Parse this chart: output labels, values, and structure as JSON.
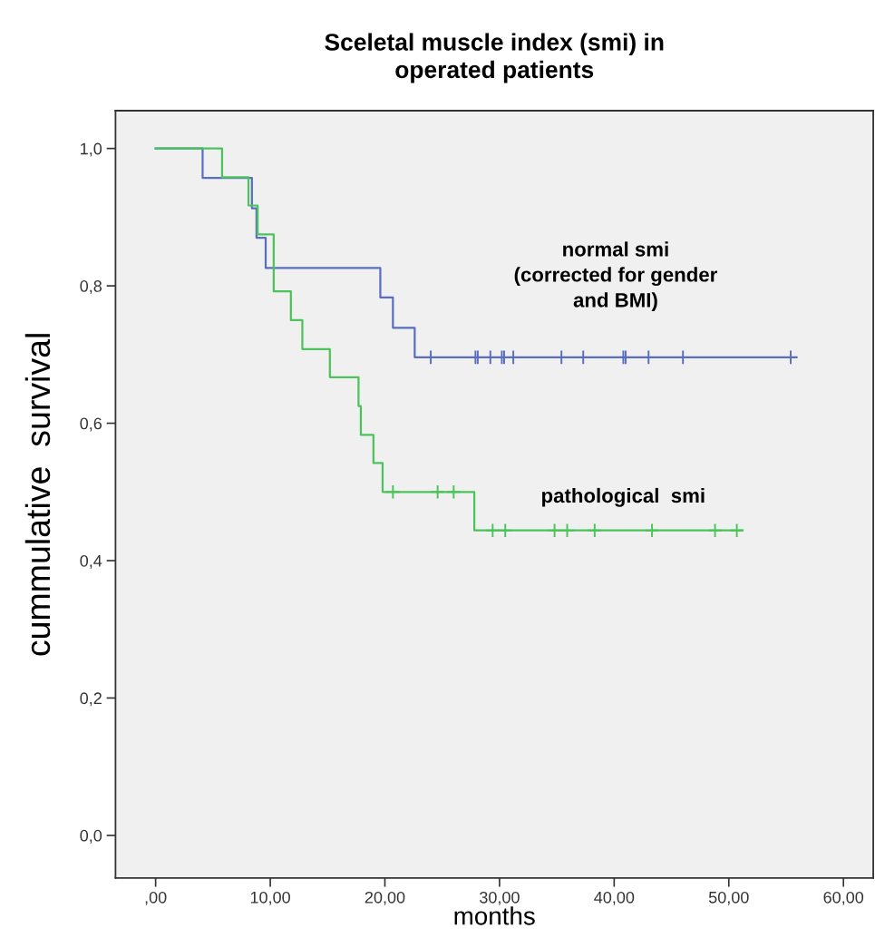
{
  "chart_data": {
    "type": "step",
    "title": "Sceletal muscle index (smi) in\noperated patients",
    "xlabel": "months",
    "ylabel": "cummulative  survival",
    "xlim": [
      -3.5,
      62.6
    ],
    "ylim": [
      -0.062,
      1.055
    ],
    "xticks": [
      {
        "value": 0,
        "label": ",00"
      },
      {
        "value": 10,
        "label": "10,00"
      },
      {
        "value": 20,
        "label": "20,00"
      },
      {
        "value": 30,
        "label": "30,00"
      },
      {
        "value": 40,
        "label": "40,00"
      },
      {
        "value": 50,
        "label": "50,00"
      },
      {
        "value": 60,
        "label": "60,00"
      }
    ],
    "yticks": [
      {
        "value": 0,
        "label": "0,0"
      },
      {
        "value": 0.2,
        "label": "0,2"
      },
      {
        "value": 0.4,
        "label": "0,4"
      },
      {
        "value": 0.6,
        "label": "0,6"
      },
      {
        "value": 0.8,
        "label": "0,8"
      },
      {
        "value": 1.0,
        "label": "1,0"
      }
    ],
    "grid": false,
    "legend": false,
    "series": [
      {
        "name": "normal smi\n(corrected for gender\nand BMI)",
        "color": "#5a6ec0",
        "x": [
          0,
          4.1,
          8.4,
          8.8,
          9.6,
          19.6,
          20.7,
          22.6,
          55.9
        ],
        "values": [
          1.0,
          0.957,
          0.913,
          0.87,
          0.826,
          0.783,
          0.739,
          0.696,
          0.696
        ]
      },
      {
        "name": "pathological  smi",
        "color": "#4cc35a",
        "x": [
          0,
          5.8,
          8.1,
          8.9,
          10.3,
          11.8,
          12.8,
          15.2,
          17.7,
          17.9,
          19.0,
          19.8,
          27.8,
          51.2
        ],
        "values": [
          1.0,
          0.958,
          0.917,
          0.875,
          0.792,
          0.75,
          0.708,
          0.667,
          0.625,
          0.583,
          0.542,
          0.5,
          0.444,
          0.444
        ]
      },
      {
        "type": "scatter",
        "marker": "cross",
        "color": "#5a6ec0",
        "x": [
          24.0,
          27.9,
          28.1,
          29.2,
          30.2,
          30.4,
          31.2,
          35.4,
          37.3,
          40.8,
          41.0,
          43.0,
          46.0,
          55.4
        ],
        "values": [
          0.696,
          0.696,
          0.696,
          0.696,
          0.696,
          0.696,
          0.696,
          0.696,
          0.696,
          0.696,
          0.696,
          0.696,
          0.696,
          0.696
        ]
      },
      {
        "type": "scatter",
        "marker": "cross",
        "color": "#4cc35a",
        "x": [
          20.7,
          24.6,
          26.0,
          29.4,
          30.5,
          34.8,
          35.9,
          38.3,
          43.3,
          48.8,
          50.7
        ],
        "values": [
          0.5,
          0.5,
          0.5,
          0.444,
          0.444,
          0.444,
          0.444,
          0.444,
          0.444,
          0.444,
          0.444
        ]
      }
    ]
  }
}
